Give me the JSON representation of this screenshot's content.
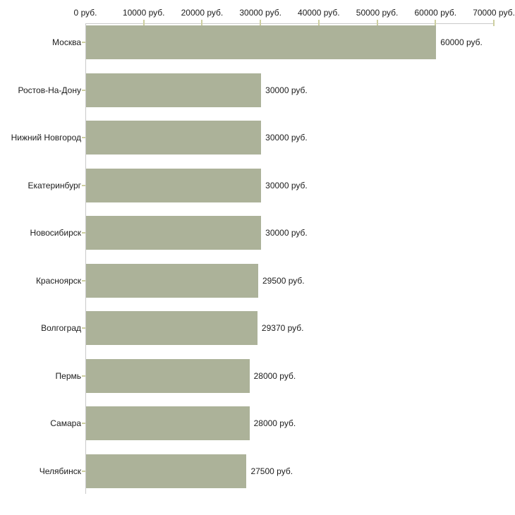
{
  "chart_data": {
    "type": "bar",
    "orientation": "horizontal",
    "title": "",
    "xlabel": "",
    "ylabel": "",
    "xlim": [
      0,
      70000
    ],
    "grid": false,
    "legend": false,
    "categories": [
      "Москва",
      "Ростов-На-Дону",
      "Нижний Новгород",
      "Екатеринбург",
      "Новосибирск",
      "Красноярск",
      "Волгоград",
      "Пермь",
      "Самара",
      "Челябинск"
    ],
    "values": [
      60000,
      30000,
      30000,
      30000,
      30000,
      29500,
      29370,
      28000,
      28000,
      27500
    ],
    "value_labels": [
      "60000 руб.",
      "30000 руб.",
      "30000 руб.",
      "30000 руб.",
      "30000 руб.",
      "29500 руб.",
      "29370 руб.",
      "28000 руб.",
      "28000 руб.",
      "27500 руб."
    ],
    "x_tick_values": [
      0,
      10000,
      20000,
      30000,
      40000,
      50000,
      60000,
      70000
    ],
    "x_tick_labels": [
      "0 руб.",
      "10000 руб.",
      "20000 руб.",
      "30000 руб.",
      "40000 руб.",
      "50000 руб.",
      "60000 руб.",
      "70000 руб."
    ],
    "colors": {
      "bar_fill": "#acb299",
      "axis_line": "#c9c9c9",
      "tick_mark": "#cdcfa0",
      "text": "#1c1c1c",
      "background": "#ffffff"
    }
  }
}
